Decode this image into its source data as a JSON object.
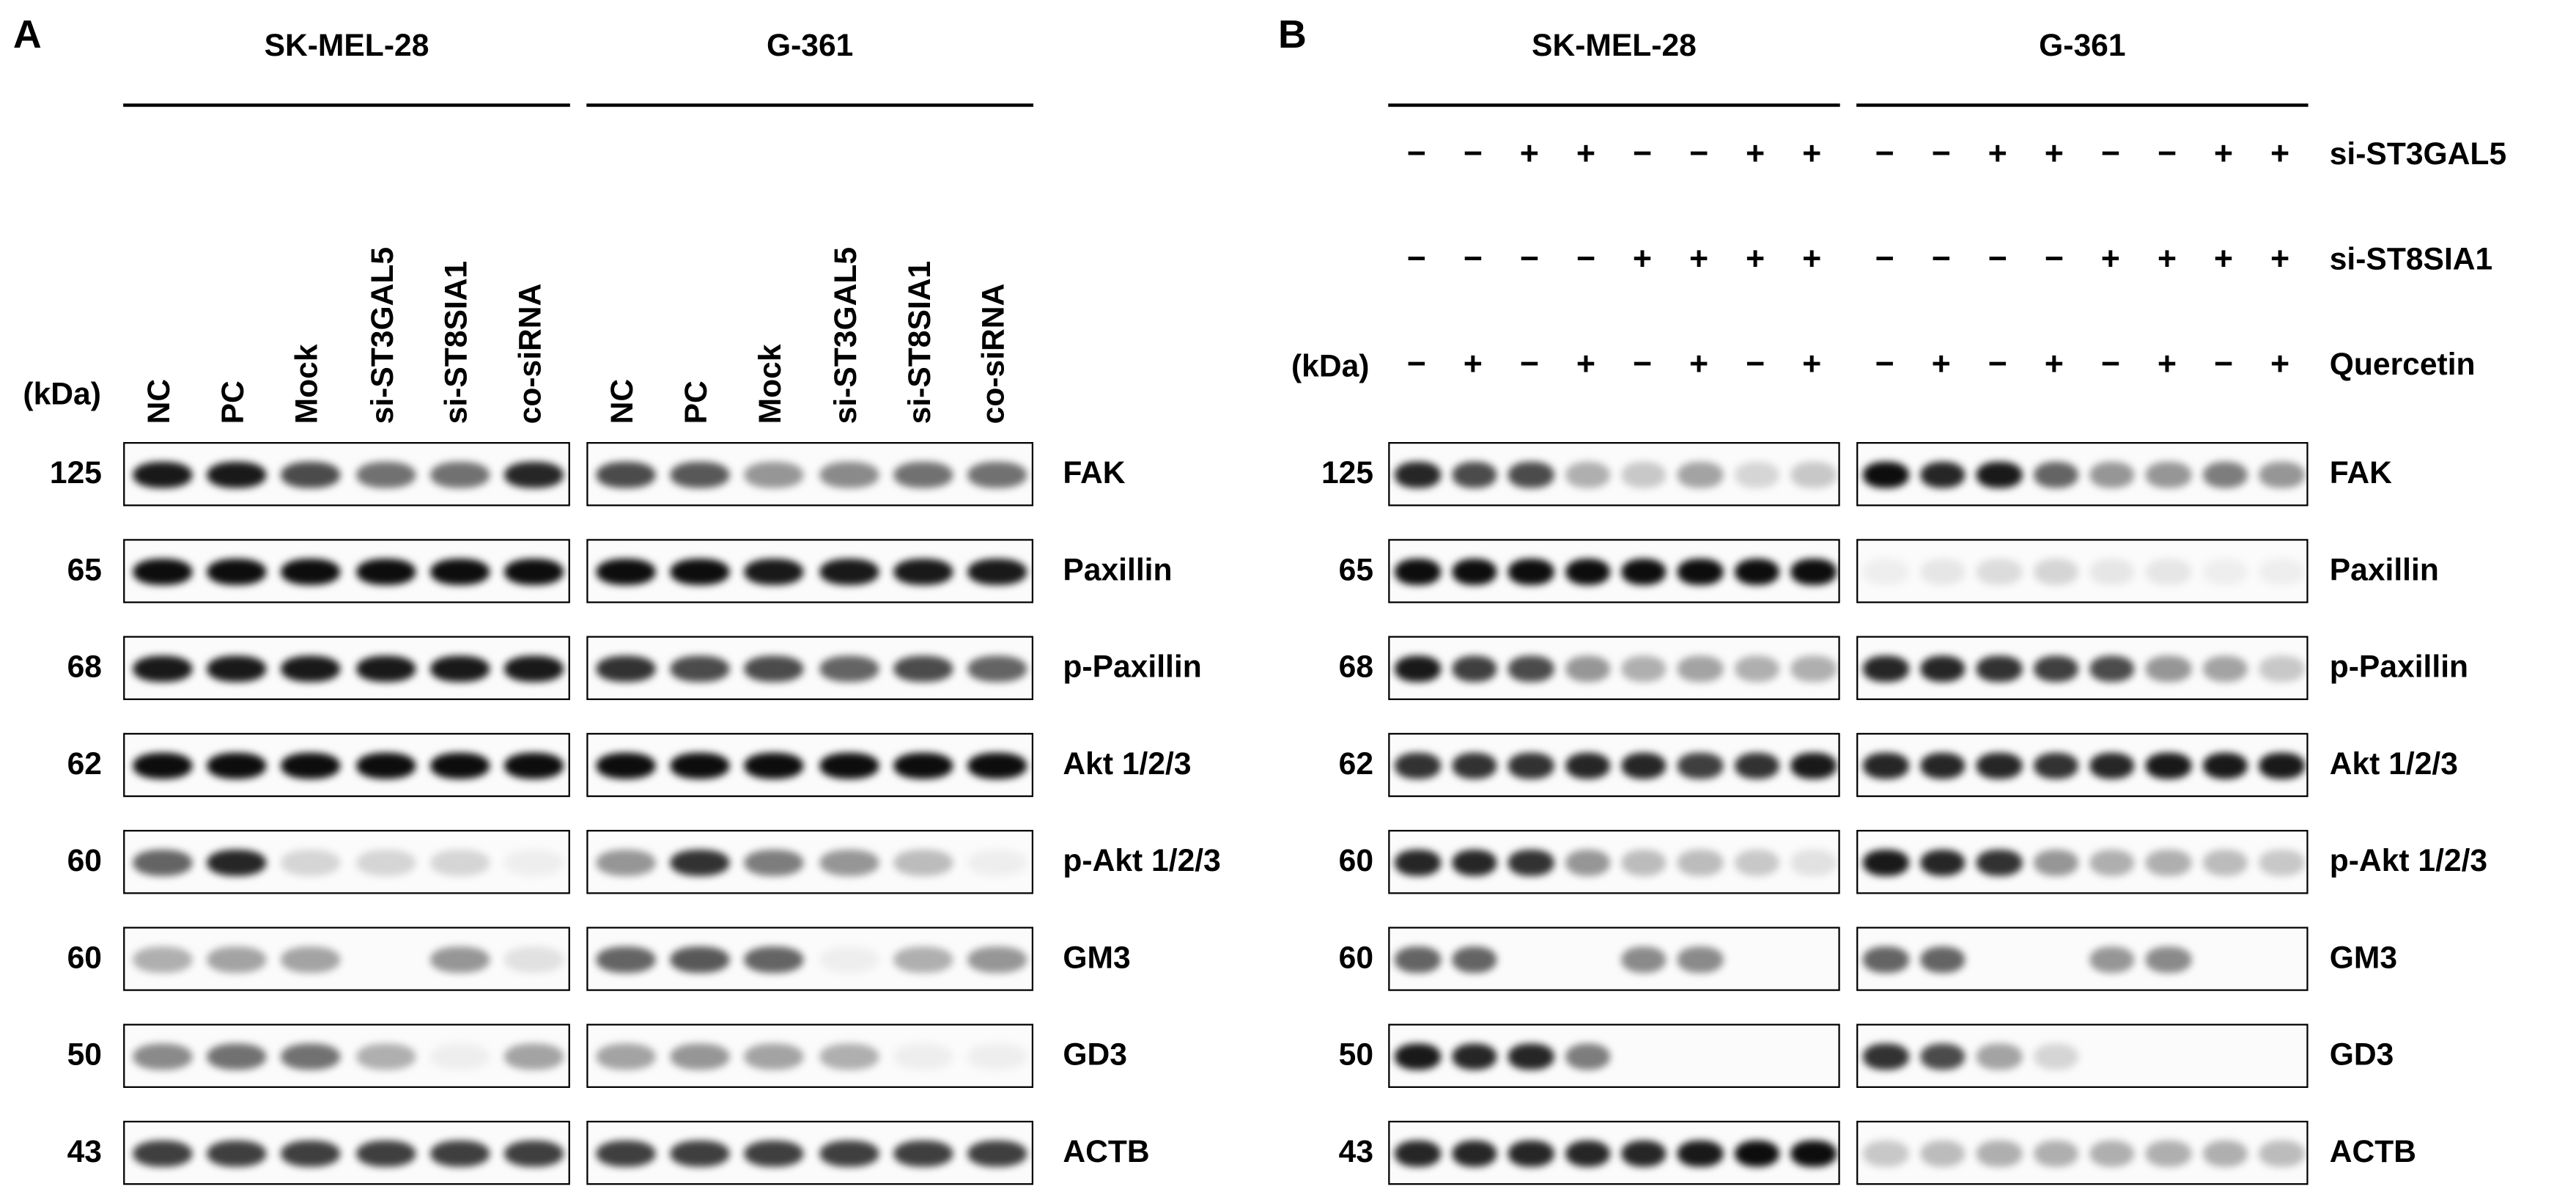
{
  "panel_a": {
    "letter": "A",
    "kda_label": "(kDa)",
    "cell_lines": [
      "SK-MEL-28",
      "G-361"
    ],
    "lanes": [
      "NC",
      "PC",
      "Mock",
      "si-ST3GAL5",
      "si-ST8SIA1",
      "co-siRNA"
    ],
    "rows": [
      {
        "protein": "FAK",
        "kda": "125",
        "band_intensity": [
          [
            0.9,
            0.9,
            0.7,
            0.55,
            0.55,
            0.85
          ],
          [
            0.7,
            0.65,
            0.4,
            0.45,
            0.55,
            0.55
          ]
        ]
      },
      {
        "protein": "Paxillin",
        "kda": "65",
        "band_intensity": [
          [
            0.95,
            0.95,
            0.95,
            0.95,
            0.95,
            0.95
          ],
          [
            0.95,
            0.95,
            0.9,
            0.9,
            0.9,
            0.9
          ]
        ]
      },
      {
        "protein": "p-Paxillin",
        "kda": "68",
        "band_intensity": [
          [
            0.9,
            0.9,
            0.9,
            0.9,
            0.9,
            0.9
          ],
          [
            0.8,
            0.7,
            0.7,
            0.6,
            0.7,
            0.6
          ]
        ]
      },
      {
        "protein": "Akt 1/2/3",
        "kda": "62",
        "band_intensity": [
          [
            0.95,
            0.95,
            0.95,
            0.95,
            0.95,
            0.95
          ],
          [
            0.95,
            0.95,
            0.95,
            0.95,
            0.95,
            0.95
          ]
        ]
      },
      {
        "protein": "p-Akt 1/2/3",
        "kda": "60",
        "band_intensity": [
          [
            0.6,
            0.85,
            0.15,
            0.15,
            0.15,
            0.05
          ],
          [
            0.4,
            0.8,
            0.5,
            0.4,
            0.25,
            0.05
          ]
        ]
      },
      {
        "protein": "GM3",
        "kda": "60",
        "band_intensity": [
          [
            0.3,
            0.35,
            0.35,
            0.0,
            0.4,
            0.1
          ],
          [
            0.6,
            0.65,
            0.6,
            0.05,
            0.3,
            0.4
          ]
        ]
      },
      {
        "protein": "GD3",
        "kda": "50",
        "band_intensity": [
          [
            0.45,
            0.55,
            0.55,
            0.3,
            0.05,
            0.35
          ],
          [
            0.35,
            0.4,
            0.35,
            0.3,
            0.05,
            0.05
          ]
        ]
      },
      {
        "protein": "ACTB",
        "kda": "43",
        "band_intensity": [
          [
            0.75,
            0.75,
            0.75,
            0.75,
            0.75,
            0.75
          ],
          [
            0.75,
            0.75,
            0.75,
            0.75,
            0.75,
            0.75
          ]
        ]
      }
    ]
  },
  "panel_b": {
    "letter": "B",
    "kda_label": "(kDa)",
    "cell_lines": [
      "SK-MEL-28",
      "G-361"
    ],
    "conditions": [
      {
        "name": "si-ST3GAL5",
        "signs": [
          "−",
          "−",
          "+",
          "+",
          "−",
          "−",
          "+",
          "+"
        ]
      },
      {
        "name": "si-ST8SIA1",
        "signs": [
          "−",
          "−",
          "−",
          "−",
          "+",
          "+",
          "+",
          "+"
        ]
      },
      {
        "name": "Quercetin",
        "signs": [
          "−",
          "+",
          "−",
          "+",
          "−",
          "+",
          "−",
          "+"
        ]
      }
    ],
    "rows": [
      {
        "protein": "FAK",
        "kda": "125",
        "band_intensity": [
          [
            0.85,
            0.7,
            0.7,
            0.3,
            0.2,
            0.35,
            0.15,
            0.2
          ],
          [
            0.95,
            0.85,
            0.9,
            0.6,
            0.4,
            0.4,
            0.5,
            0.4
          ]
        ]
      },
      {
        "protein": "Paxillin",
        "kda": "65",
        "band_intensity": [
          [
            0.95,
            0.95,
            0.95,
            0.95,
            0.95,
            0.95,
            0.95,
            0.95
          ],
          [
            0.05,
            0.08,
            0.12,
            0.15,
            0.08,
            0.08,
            0.05,
            0.05
          ]
        ]
      },
      {
        "protein": "p-Paxillin",
        "kda": "68",
        "band_intensity": [
          [
            0.9,
            0.75,
            0.7,
            0.4,
            0.3,
            0.35,
            0.3,
            0.3
          ],
          [
            0.85,
            0.85,
            0.8,
            0.75,
            0.7,
            0.4,
            0.35,
            0.2
          ]
        ]
      },
      {
        "protein": "Akt 1/2/3",
        "kda": "62",
        "band_intensity": [
          [
            0.8,
            0.8,
            0.8,
            0.85,
            0.85,
            0.75,
            0.8,
            0.9
          ],
          [
            0.85,
            0.85,
            0.85,
            0.8,
            0.85,
            0.9,
            0.9,
            0.9
          ]
        ]
      },
      {
        "protein": "p-Akt 1/2/3",
        "kda": "60",
        "band_intensity": [
          [
            0.85,
            0.85,
            0.8,
            0.4,
            0.25,
            0.25,
            0.2,
            0.1
          ],
          [
            0.9,
            0.85,
            0.8,
            0.4,
            0.3,
            0.3,
            0.25,
            0.2
          ]
        ]
      },
      {
        "protein": "GM3",
        "kda": "60",
        "band_intensity": [
          [
            0.6,
            0.6,
            0,
            0,
            0.45,
            0.45,
            0,
            0
          ],
          [
            0.6,
            0.6,
            0,
            0,
            0.4,
            0.45,
            0,
            0
          ]
        ]
      },
      {
        "protein": "GD3",
        "kda": "50",
        "band_intensity": [
          [
            0.9,
            0.85,
            0.85,
            0.5,
            0,
            0,
            0,
            0
          ],
          [
            0.8,
            0.7,
            0.35,
            0.15,
            0,
            0,
            0,
            0
          ]
        ]
      },
      {
        "protein": "ACTB",
        "kda": "43",
        "band_intensity": [
          [
            0.85,
            0.85,
            0.85,
            0.85,
            0.85,
            0.9,
            0.95,
            0.95
          ],
          [
            0.2,
            0.25,
            0.3,
            0.3,
            0.3,
            0.3,
            0.3,
            0.25
          ]
        ]
      }
    ]
  }
}
